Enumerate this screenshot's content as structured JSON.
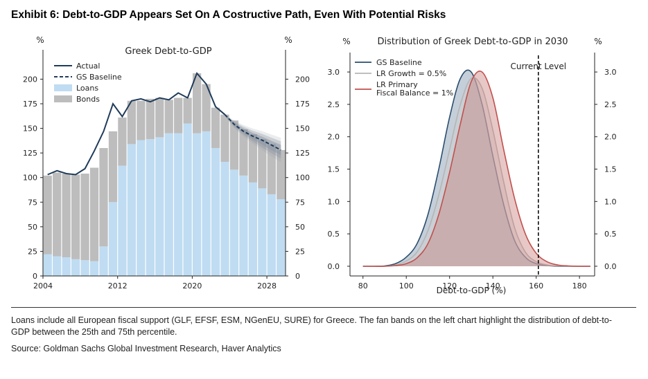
{
  "exhibit_title": "Exhibit 6: Debt-to-GDP Appears Set On A Costructive Path, Even With Potential Risks",
  "footnote": "Loans include all European fiscal support (GLF, EFSF, ESM, NGenEU, SURE) for Greece. The fan bands on the left chart highlight the distribution of debt-to-GDP between the 25th and 75th percentile.",
  "source": "Source: Goldman Sachs Global Investment Research, Haver Analytics",
  "colors": {
    "actual": "#1f3b5a",
    "baseline": "#1f3b5a",
    "loans": "#bfdcf2",
    "bonds": "#bdbdbd",
    "gs_baseline_dist": "#2a4d6e",
    "lr_growth_dist": "#b5b5b5",
    "lr_primary_dist": "#c0504d",
    "current_level": "#000000"
  },
  "chart_data": [
    {
      "type": "bar",
      "title": "Greek Debt-to-GDP",
      "ylabel_left": "%",
      "ylabel_right": "%",
      "ylim": [
        0,
        220
      ],
      "yticks": [
        0,
        25,
        50,
        75,
        100,
        125,
        150,
        175,
        200
      ],
      "xticks": [
        "2004",
        "2012",
        "2020",
        "2028"
      ],
      "stacked": true,
      "years": [
        2004,
        2005,
        2006,
        2007,
        2008,
        2009,
        2010,
        2011,
        2012,
        2013,
        2014,
        2015,
        2016,
        2017,
        2018,
        2019,
        2020,
        2021,
        2022,
        2023,
        2024,
        2025,
        2026,
        2027,
        2028,
        2029
      ],
      "series": [
        {
          "name": "Loans",
          "values": [
            22,
            20,
            19,
            17,
            16,
            15,
            30,
            75,
            112,
            134,
            138,
            139,
            141,
            145,
            145,
            155,
            145,
            147,
            130,
            116,
            108,
            102,
            95,
            89,
            83,
            78
          ]
        },
        {
          "name": "Bonds",
          "values": [
            80,
            85,
            85,
            86,
            88,
            95,
            100,
            72,
            49,
            44,
            40,
            41,
            40,
            34,
            36,
            26,
            61,
            48,
            41,
            48,
            50,
            47,
            49,
            50,
            51,
            50
          ]
        }
      ],
      "lines": [
        {
          "name": "Actual",
          "x": [
            2004,
            2005,
            2006,
            2007,
            2008,
            2009,
            2010,
            2011,
            2012,
            2013,
            2014,
            2015,
            2016,
            2017,
            2018,
            2019,
            2020,
            2021,
            2022,
            2023
          ],
          "values": [
            103,
            107,
            104,
            103,
            109,
            127,
            147,
            175,
            162,
            178,
            180,
            177,
            181,
            179,
            186,
            181,
            206,
            195,
            172,
            164
          ]
        },
        {
          "name": "GS Baseline",
          "x": [
            2023,
            2024,
            2025,
            2026,
            2027,
            2028,
            2029
          ],
          "values": [
            164,
            154,
            147,
            142,
            138,
            133,
            128
          ]
        }
      ],
      "fan_band": {
        "x": [
          2023,
          2024,
          2025,
          2026,
          2027,
          2028,
          2029
        ],
        "low": [
          162,
          149,
          140,
          132,
          125,
          118,
          112
        ],
        "high": [
          165,
          159,
          155,
          152,
          150,
          147,
          144
        ]
      },
      "legend": "top-left"
    },
    {
      "type": "area",
      "title": "Distribution of Greek Debt-to-GDP in 2030",
      "xlabel": "Debt-to-GDP (%)",
      "ylabel_left": "%",
      "ylabel_right": "%",
      "xlim": [
        74,
        187
      ],
      "ylim": [
        -0.15,
        3.3
      ],
      "xticks": [
        80,
        100,
        120,
        140,
        160,
        180
      ],
      "yticks": [
        "0.0",
        "0.5",
        "1.0",
        "1.5",
        "2.0",
        "2.5",
        "3.0"
      ],
      "x": [
        80,
        85,
        90,
        95,
        100,
        105,
        110,
        115,
        120,
        125,
        130,
        135,
        140,
        145,
        150,
        155,
        160,
        165,
        170,
        175,
        180,
        185
      ],
      "series": [
        {
          "name": "GS Baseline",
          "values": [
            0,
            0,
            0.005,
            0.04,
            0.14,
            0.35,
            0.8,
            1.5,
            2.3,
            2.9,
            3.0,
            2.5,
            1.7,
            0.95,
            0.4,
            0.14,
            0.04,
            0.01,
            0,
            0,
            0,
            0
          ]
        },
        {
          "name": "LR Growth = 0.5%",
          "values": [
            0,
            0,
            0,
            0.02,
            0.08,
            0.22,
            0.55,
            1.1,
            1.8,
            2.5,
            2.9,
            2.75,
            2.1,
            1.3,
            0.6,
            0.22,
            0.07,
            0.02,
            0.005,
            0,
            0,
            0
          ]
        },
        {
          "name": "LR Primary\nFiscal Balance = 1%",
          "values": [
            0,
            0,
            0,
            0.01,
            0.04,
            0.13,
            0.35,
            0.8,
            1.45,
            2.2,
            2.85,
            3.0,
            2.6,
            1.8,
            1.05,
            0.5,
            0.2,
            0.07,
            0.02,
            0.005,
            0,
            0
          ]
        }
      ],
      "current_level": {
        "label": "Current Level",
        "x": 161
      },
      "legend": "top-left"
    }
  ]
}
